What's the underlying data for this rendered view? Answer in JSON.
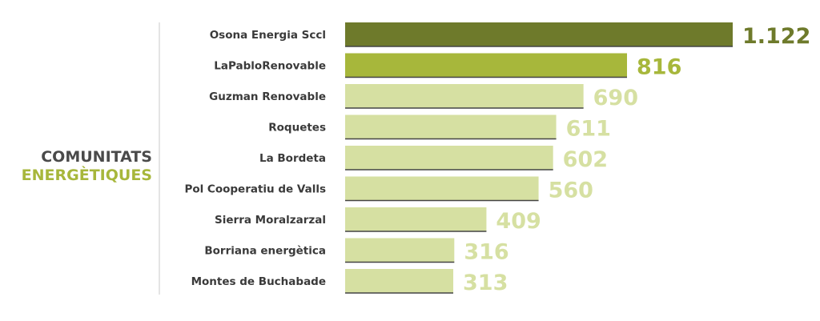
{
  "title": {
    "line1": "COMUNITATS",
    "line2": "ENERGÈTIQUES"
  },
  "colors": {
    "title_line1": "#4a4a4a",
    "title_line2": "#a7b73b",
    "label_text": "#3a3a3a",
    "divider": "#c8c8c8",
    "highlight_1": "#6e7a2b",
    "highlight_2": "#a7b73b",
    "default_bar": "#d6e0a2",
    "bar_shadow": "#444444"
  },
  "chart_data": {
    "type": "bar",
    "orientation": "horizontal",
    "categories": [
      "Osona Energia Sccl",
      "LaPabloRenovable",
      "Guzman Renovable",
      "Roquetes",
      "La Bordeta",
      "Pol Cooperatiu de Valls",
      "Sierra Moralzarzal",
      "Borriana energètica",
      "Montes de Buchabade"
    ],
    "values": [
      1122,
      816,
      690,
      611,
      602,
      560,
      409,
      316,
      313
    ],
    "value_labels": [
      "1.122",
      "816",
      "690",
      "611",
      "602",
      "560",
      "409",
      "316",
      "313"
    ],
    "xlim": [
      0,
      1122
    ],
    "grid": false,
    "legend": "none"
  }
}
